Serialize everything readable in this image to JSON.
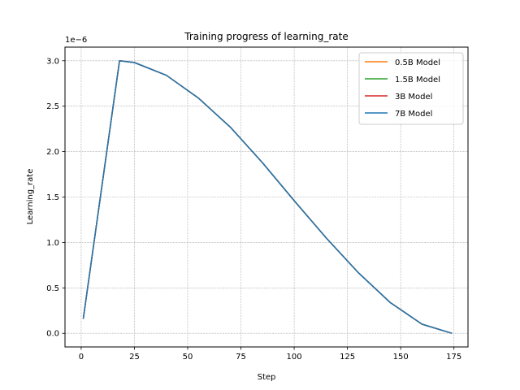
{
  "chart_data": {
    "type": "line",
    "title": "Training progress of learning_rate",
    "xlabel": "Step",
    "ylabel": "Learning_rate",
    "offset_text": "1e−6",
    "xlim": [
      -7.6,
      181.6
    ],
    "ylim": [
      -0.15,
      3.15
    ],
    "y_scale_exponent": -6,
    "grid": true,
    "legend_position": "top-right",
    "x_ticks": [
      0,
      25,
      50,
      75,
      100,
      125,
      150,
      175
    ],
    "x_tick_labels": [
      "0",
      "25",
      "50",
      "75",
      "100",
      "125",
      "150",
      "175"
    ],
    "y_ticks": [
      0.0,
      0.5,
      1.0,
      1.5,
      2.0,
      2.5,
      3.0
    ],
    "y_tick_labels": [
      "0.0",
      "0.5",
      "1.0",
      "1.5",
      "2.0",
      "2.5",
      "3.0"
    ],
    "series": [
      {
        "name": "0.5B Model",
        "color": "#ff7f0e",
        "x": [
          1,
          18,
          25,
          40,
          55,
          70,
          85,
          100,
          115,
          130,
          145,
          160,
          174
        ],
        "y": [
          0.16,
          3.0,
          2.98,
          2.84,
          2.59,
          2.27,
          1.88,
          1.46,
          1.05,
          0.67,
          0.34,
          0.1,
          0.0
        ]
      },
      {
        "name": "1.5B Model",
        "color": "#2ca02c",
        "x": [
          1,
          18,
          25,
          40,
          55,
          70,
          85,
          100,
          115,
          130,
          145,
          160,
          174
        ],
        "y": [
          0.16,
          3.0,
          2.98,
          2.84,
          2.59,
          2.27,
          1.88,
          1.46,
          1.05,
          0.67,
          0.34,
          0.1,
          0.0
        ]
      },
      {
        "name": "3B Model",
        "color": "#d62728",
        "x": [
          1,
          18,
          25,
          40,
          55,
          70,
          85,
          100,
          115,
          130,
          145,
          160,
          174
        ],
        "y": [
          0.16,
          3.0,
          2.98,
          2.84,
          2.59,
          2.27,
          1.88,
          1.46,
          1.05,
          0.67,
          0.34,
          0.1,
          0.0
        ]
      },
      {
        "name": "7B Model",
        "color": "#1f77b4",
        "x": [
          1,
          18,
          25,
          40,
          55,
          70,
          85,
          100,
          115,
          130,
          145,
          160,
          174
        ],
        "y": [
          0.16,
          3.0,
          2.98,
          2.84,
          2.59,
          2.27,
          1.88,
          1.46,
          1.05,
          0.67,
          0.34,
          0.1,
          0.0
        ]
      }
    ]
  }
}
